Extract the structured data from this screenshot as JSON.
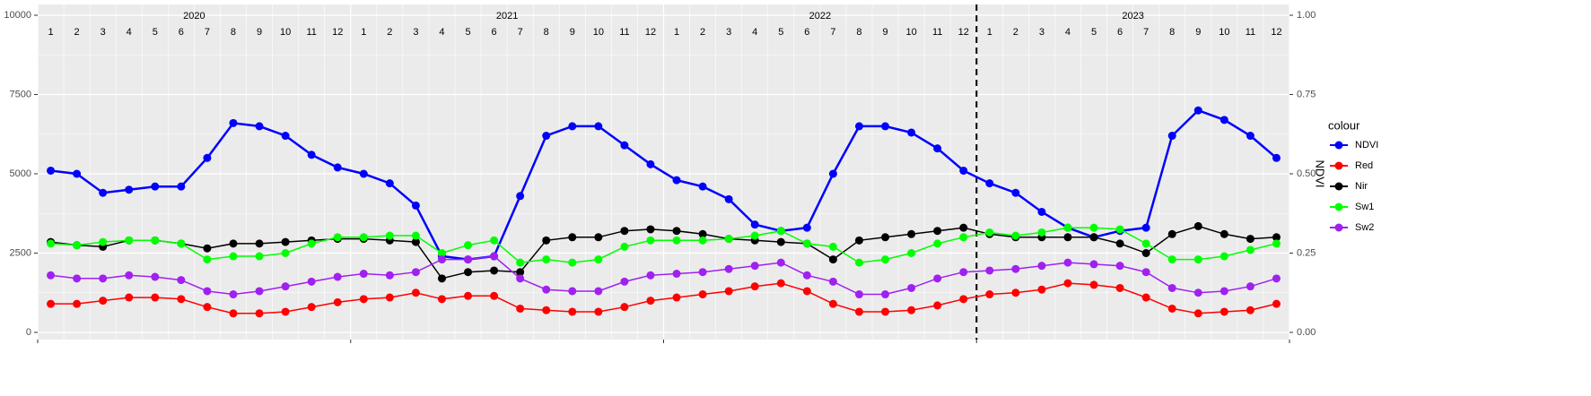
{
  "chart_data": {
    "type": "line",
    "year_labels": [
      "2020",
      "2021",
      "2022",
      "2023"
    ],
    "month_labels": [
      "1",
      "2",
      "3",
      "4",
      "5",
      "6",
      "7",
      "8",
      "9",
      "10",
      "11",
      "12"
    ],
    "x": [
      "2020-01",
      "2020-02",
      "2020-03",
      "2020-04",
      "2020-05",
      "2020-06",
      "2020-07",
      "2020-08",
      "2020-09",
      "2020-10",
      "2020-11",
      "2020-12",
      "2021-01",
      "2021-02",
      "2021-03",
      "2021-04",
      "2021-05",
      "2021-06",
      "2021-07",
      "2021-08",
      "2021-09",
      "2021-10",
      "2021-11",
      "2021-12",
      "2022-01",
      "2022-02",
      "2022-03",
      "2022-04",
      "2022-05",
      "2022-06",
      "2022-07",
      "2022-08",
      "2022-09",
      "2022-10",
      "2022-11",
      "2022-12",
      "2023-01",
      "2023-02",
      "2023-03",
      "2023-04",
      "2023-05",
      "2023-06",
      "2023-07",
      "2023-08",
      "2023-09",
      "2023-10",
      "2023-11",
      "2023-12"
    ],
    "xlim": [
      "2020-01",
      "2024-01"
    ],
    "xticks": [
      "2020-01",
      "2021-01",
      "2022-01",
      "2023-01",
      "2024-01"
    ],
    "vline": "2023-01",
    "ylim": [
      0,
      10000
    ],
    "yticks": [
      0,
      2500,
      5000,
      7500,
      10000
    ],
    "y2lim": [
      0,
      1
    ],
    "y2ticks": [
      {
        "value": 0,
        "label": "0.00"
      },
      {
        "value": 0.25,
        "label": "0.25"
      },
      {
        "value": 0.5,
        "label": "0.50"
      },
      {
        "value": 0.75,
        "label": "0.75"
      },
      {
        "value": 1,
        "label": "1.00"
      }
    ],
    "y2_label": "NDVI",
    "legend_title": "colour",
    "legend": "right",
    "grid": true,
    "series": [
      {
        "name": "NDVI",
        "color": "#0000ff",
        "axis": "y2",
        "values": [
          0.51,
          0.5,
          0.44,
          0.45,
          0.46,
          0.46,
          0.55,
          0.66,
          0.65,
          0.62,
          0.56,
          0.52,
          0.5,
          0.47,
          0.4,
          0.24,
          0.23,
          0.24,
          0.43,
          0.62,
          0.65,
          0.65,
          0.59,
          0.53,
          0.48,
          0.46,
          0.42,
          0.34,
          0.32,
          0.33,
          0.5,
          0.65,
          0.65,
          0.63,
          0.58,
          0.51,
          0.47,
          0.44,
          0.38,
          0.33,
          0.3,
          0.32,
          0.33,
          0.62,
          0.7,
          0.67,
          0.62,
          0.55
        ]
      },
      {
        "name": "Red",
        "color": "#ff0000",
        "values": [
          900,
          900,
          1000,
          1100,
          1100,
          1050,
          800,
          600,
          600,
          650,
          800,
          950,
          1050,
          1100,
          1250,
          1050,
          1150,
          1150,
          750,
          700,
          650,
          650,
          800,
          1000,
          1100,
          1200,
          1300,
          1450,
          1550,
          1300,
          900,
          650,
          650,
          700,
          850,
          1050,
          1200,
          1250,
          1350,
          1550,
          1500,
          1400,
          1100,
          750,
          600,
          650,
          700,
          900
        ]
      },
      {
        "name": "Nir",
        "color": "#000000",
        "values": [
          2850,
          2750,
          2700,
          2900,
          2900,
          2800,
          2650,
          2800,
          2800,
          2850,
          2900,
          2950,
          2950,
          2900,
          2850,
          1700,
          1900,
          1950,
          1900,
          2900,
          3000,
          3000,
          3200,
          3250,
          3200,
          3100,
          2950,
          2900,
          2850,
          2800,
          2300,
          2900,
          3000,
          3100,
          3200,
          3300,
          3100,
          3000,
          3000,
          3000,
          3000,
          2800,
          2500,
          3100,
          3350,
          3100,
          2950,
          3000
        ]
      },
      {
        "name": "Sw1",
        "color": "#00ff00",
        "values": [
          2800,
          2750,
          2850,
          2900,
          2900,
          2800,
          2300,
          2400,
          2400,
          2500,
          2800,
          3000,
          3000,
          3050,
          3050,
          2500,
          2750,
          2900,
          2200,
          2300,
          2200,
          2300,
          2700,
          2900,
          2900,
          2900,
          2950,
          3050,
          3200,
          2800,
          2700,
          2200,
          2300,
          2500,
          2800,
          3000,
          3150,
          3050,
          3150,
          3300,
          3300,
          3250,
          2800,
          2300,
          2300,
          2400,
          2600,
          2800
        ]
      },
      {
        "name": "Sw2",
        "color": "#a020f0",
        "values": [
          1800,
          1700,
          1700,
          1800,
          1750,
          1650,
          1300,
          1200,
          1300,
          1450,
          1600,
          1750,
          1850,
          1800,
          1900,
          2300,
          2300,
          2400,
          1700,
          1350,
          1300,
          1300,
          1600,
          1800,
          1850,
          1900,
          2000,
          2100,
          2200,
          1800,
          1600,
          1200,
          1200,
          1400,
          1700,
          1900,
          1950,
          2000,
          2100,
          2200,
          2150,
          2100,
          1900,
          1400,
          1250,
          1300,
          1450,
          1700
        ]
      }
    ]
  }
}
